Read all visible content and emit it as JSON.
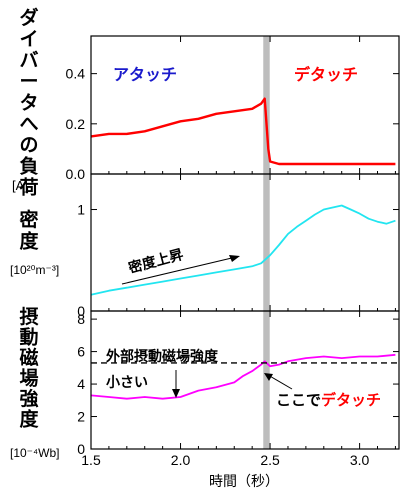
{
  "chart_data": [
    {
      "type": "line",
      "panel": "top",
      "ylabel_vertical": "ダイバータへの負荷",
      "ylabel_unit": "[A]",
      "yticks": [
        "0.0",
        "0.2",
        "0.4"
      ],
      "ylim": [
        0.0,
        0.55
      ],
      "annotations": {
        "left": "アタッチ",
        "right": "デタッチ"
      },
      "colors": {
        "line": "#ff0000",
        "left_annotation": "#1a1acc",
        "right_annotation": "#ff0000"
      },
      "series": [
        {
          "x": [
            1.5,
            1.6,
            1.7,
            1.8,
            1.9,
            2.0,
            2.1,
            2.2,
            2.3,
            2.4,
            2.45,
            2.47,
            2.49,
            2.5,
            2.55,
            2.6,
            2.7,
            2.8,
            2.9,
            3.0,
            3.1,
            3.2
          ],
          "y": [
            0.15,
            0.16,
            0.16,
            0.17,
            0.19,
            0.21,
            0.22,
            0.24,
            0.25,
            0.26,
            0.28,
            0.3,
            0.1,
            0.05,
            0.04,
            0.04,
            0.04,
            0.04,
            0.04,
            0.04,
            0.04,
            0.04
          ]
        }
      ]
    },
    {
      "type": "line",
      "panel": "middle",
      "ylabel_vertical": "密度",
      "ylabel_unit": "[10²⁰m⁻³]",
      "yticks": [
        "0",
        "1"
      ],
      "ylim": [
        0,
        1.35
      ],
      "annotations": {
        "arrow_label": "密度上昇"
      },
      "colors": {
        "line": "#22e5f0"
      },
      "series": [
        {
          "x": [
            1.5,
            1.6,
            1.7,
            1.8,
            1.9,
            2.0,
            2.1,
            2.2,
            2.3,
            2.4,
            2.45,
            2.5,
            2.55,
            2.6,
            2.65,
            2.7,
            2.75,
            2.8,
            2.85,
            2.9,
            2.95,
            3.0,
            3.05,
            3.1,
            3.15,
            3.2
          ],
          "y": [
            0.16,
            0.2,
            0.23,
            0.26,
            0.29,
            0.32,
            0.35,
            0.38,
            0.41,
            0.44,
            0.47,
            0.55,
            0.65,
            0.76,
            0.83,
            0.89,
            0.95,
            1.0,
            1.02,
            1.04,
            1.0,
            0.96,
            0.91,
            0.88,
            0.86,
            0.89
          ]
        }
      ]
    },
    {
      "type": "line",
      "panel": "bottom",
      "ylabel_vertical": "摂動磁場強度",
      "ylabel_unit": "[10⁻⁴Wb]",
      "yticks": [
        "0",
        "2",
        "4",
        "6",
        "8"
      ],
      "ylim": [
        0,
        8.5
      ],
      "threshold": 5.3,
      "annotations": {
        "threshold_label": "外部摂動磁場強度",
        "small_label": "小さい",
        "here_label": "ここで",
        "here_label_colored": "デタッチ"
      },
      "colors": {
        "line": "#ff00ff",
        "threshold": "#000000",
        "here_colored": "#ff0000"
      },
      "series": [
        {
          "x": [
            1.5,
            1.6,
            1.7,
            1.8,
            1.9,
            2.0,
            2.1,
            2.2,
            2.3,
            2.35,
            2.4,
            2.45,
            2.47,
            2.5,
            2.55,
            2.6,
            2.7,
            2.8,
            2.9,
            3.0,
            3.1,
            3.2
          ],
          "y": [
            3.3,
            3.2,
            3.1,
            3.2,
            3.1,
            3.2,
            3.6,
            3.8,
            4.1,
            4.5,
            4.8,
            5.2,
            5.4,
            5.1,
            5.2,
            5.4,
            5.6,
            5.7,
            5.6,
            5.7,
            5.7,
            5.8
          ]
        }
      ]
    }
  ],
  "x_axis": {
    "label": "時間（秒）",
    "ticks": [
      "1.5",
      "2.0",
      "2.5",
      "3.0"
    ],
    "tick_values": [
      1.5,
      2.0,
      2.5,
      3.0
    ],
    "xlim": [
      1.5,
      3.22
    ]
  },
  "event_band": {
    "x_start": 2.462,
    "x_end": 2.498,
    "color": "#bdbdbd"
  }
}
